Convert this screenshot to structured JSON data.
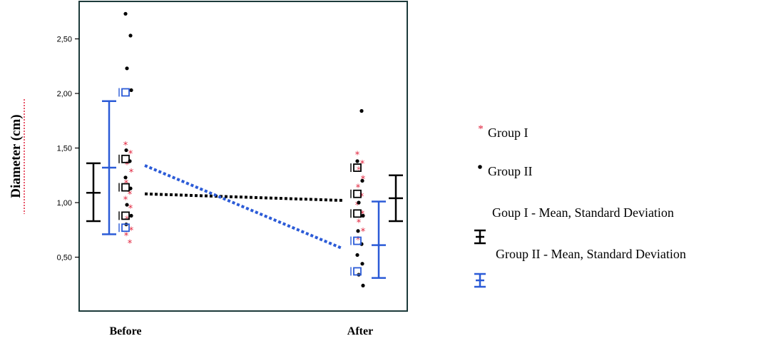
{
  "chart_data": {
    "type": "scatter",
    "title": "",
    "ylabel": "Diameter (cm)",
    "xlabel": "",
    "categories": [
      "Before",
      "After"
    ],
    "ylim": [
      0.0,
      2.8
    ],
    "yticks": [
      "0,50",
      "1,00",
      "1,50",
      "2,00",
      "2,50"
    ],
    "ytick_values": [
      0.5,
      1.0,
      1.5,
      2.0,
      2.5
    ],
    "grid": false,
    "legend_position": "right",
    "colors": {
      "group1": "#e0203a",
      "group2": "#000000",
      "mean1": "#000000",
      "mean2": "#2b5bd7"
    },
    "series": [
      {
        "name": "Group I",
        "marker": "asterisk",
        "points": [
          {
            "x": "Before",
            "y": 1.53
          },
          {
            "x": "Before",
            "y": 1.45
          },
          {
            "x": "Before",
            "y": 1.35
          },
          {
            "x": "Before",
            "y": 1.28
          },
          {
            "x": "Before",
            "y": 1.18
          },
          {
            "x": "Before",
            "y": 1.08
          },
          {
            "x": "Before",
            "y": 1.03
          },
          {
            "x": "Before",
            "y": 0.95
          },
          {
            "x": "Before",
            "y": 0.85
          },
          {
            "x": "Before",
            "y": 0.75
          },
          {
            "x": "Before",
            "y": 0.7
          },
          {
            "x": "Before",
            "y": 0.63
          },
          {
            "x": "After",
            "y": 1.44
          },
          {
            "x": "After",
            "y": 1.36
          },
          {
            "x": "After",
            "y": 1.3
          },
          {
            "x": "After",
            "y": 1.22
          },
          {
            "x": "After",
            "y": 1.14
          },
          {
            "x": "After",
            "y": 1.06
          },
          {
            "x": "After",
            "y": 0.98
          },
          {
            "x": "After",
            "y": 0.9
          },
          {
            "x": "After",
            "y": 0.82
          },
          {
            "x": "After",
            "y": 0.74
          },
          {
            "x": "After",
            "y": 0.66
          }
        ]
      },
      {
        "name": "Group II",
        "marker": "dot",
        "points": [
          {
            "x": "Before",
            "y": 2.73
          },
          {
            "x": "Before",
            "y": 2.53
          },
          {
            "x": "Before",
            "y": 2.23
          },
          {
            "x": "Before",
            "y": 2.03
          },
          {
            "x": "Before",
            "y": 1.48
          },
          {
            "x": "Before",
            "y": 1.38
          },
          {
            "x": "Before",
            "y": 1.23
          },
          {
            "x": "Before",
            "y": 1.13
          },
          {
            "x": "Before",
            "y": 0.98
          },
          {
            "x": "Before",
            "y": 0.88
          },
          {
            "x": "Before",
            "y": 0.8
          },
          {
            "x": "After",
            "y": 1.84
          },
          {
            "x": "After",
            "y": 1.38
          },
          {
            "x": "After",
            "y": 1.2
          },
          {
            "x": "After",
            "y": 1.0
          },
          {
            "x": "After",
            "y": 0.88
          },
          {
            "x": "After",
            "y": 0.74
          },
          {
            "x": "After",
            "y": 0.62
          },
          {
            "x": "After",
            "y": 0.52
          },
          {
            "x": "After",
            "y": 0.44
          },
          {
            "x": "After",
            "y": 0.34
          },
          {
            "x": "After",
            "y": 0.24
          }
        ]
      },
      {
        "name": "open-squares",
        "marker": "square",
        "color": "#000000",
        "points": [
          {
            "x": "Before",
            "y": 1.4
          },
          {
            "x": "Before",
            "y": 1.14
          },
          {
            "x": "Before",
            "y": 0.88
          },
          {
            "x": "After",
            "y": 1.32
          },
          {
            "x": "After",
            "y": 1.08
          },
          {
            "x": "After",
            "y": 0.9
          }
        ]
      },
      {
        "name": "open-squares-blue",
        "marker": "square",
        "color": "#2b5bd7",
        "points": [
          {
            "x": "Before",
            "y": 2.01
          },
          {
            "x": "Before",
            "y": 0.77
          },
          {
            "x": "After",
            "y": 0.65
          },
          {
            "x": "After",
            "y": 0.37
          }
        ]
      }
    ],
    "mean_sd": [
      {
        "name": "Goup I - Mean, Standard Deviation",
        "color": "#000000",
        "before": {
          "mean": 1.09,
          "low": 0.83,
          "high": 1.36
        },
        "after": {
          "mean": 1.04,
          "low": 0.83,
          "high": 1.25
        }
      },
      {
        "name": "Group II - Mean, Standard Deviation",
        "color": "#2b5bd7",
        "before": {
          "mean": 1.32,
          "low": 0.71,
          "high": 1.93
        },
        "after": {
          "mean": 0.61,
          "low": 0.31,
          "high": 1.01
        }
      }
    ],
    "trend_lines": [
      {
        "color": "#000000",
        "from": 1.08,
        "to": 1.02
      },
      {
        "color": "#2b5bd7",
        "from": 1.34,
        "to": 0.58
      }
    ]
  },
  "legend": {
    "group1": "Group I",
    "group2": "Group II",
    "mean1": "Goup I - Mean, Standard Deviation",
    "mean2": "Group II - Mean, Standard Deviation"
  }
}
